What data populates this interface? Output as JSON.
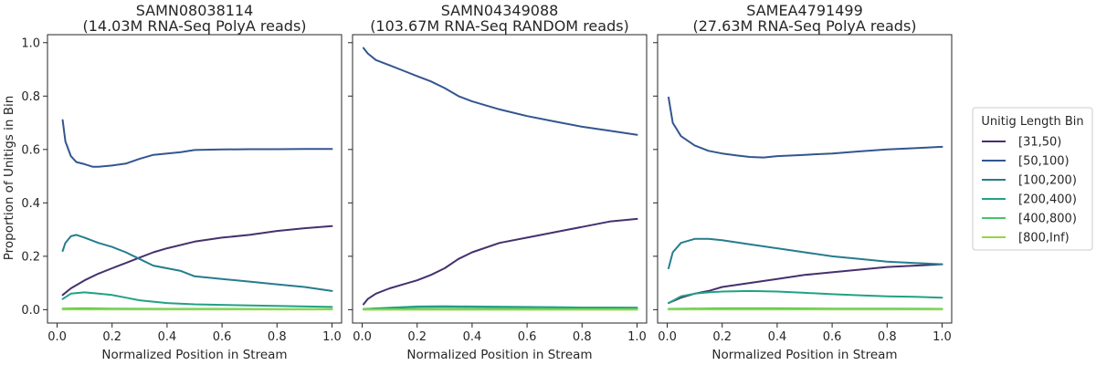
{
  "chart_data": {
    "type": "line",
    "ylabel": "Proportion of Unitigs in Bin",
    "xlabel": "Normalized Position in Stream",
    "xlim": [
      0,
      1
    ],
    "ylim": [
      0,
      1
    ],
    "xticks": [
      "0.0",
      "0.2",
      "0.4",
      "0.6",
      "0.8",
      "1.0"
    ],
    "yticks": [
      "0.0",
      "0.2",
      "0.4",
      "0.6",
      "0.8",
      "1.0"
    ],
    "legend": {
      "title": "Unitig Length Bin",
      "placement": "right",
      "entries": [
        {
          "name": "[31,50)",
          "color": "#45306e"
        },
        {
          "name": "[50,100)",
          "color": "#33568f"
        },
        {
          "name": "[100,200)",
          "color": "#267c8e"
        },
        {
          "name": "[200,400)",
          "color": "#22a184"
        },
        {
          "name": "[400,800)",
          "color": "#48c16d"
        },
        {
          "name": "[800,Inf)",
          "color": "#92d841"
        }
      ]
    },
    "panels": [
      {
        "title_line1": "SAMN08038114",
        "title_line2": "(14.03M RNA-Seq PolyA reads)",
        "series": [
          {
            "name": "[31,50)",
            "x": [
              0.02,
              0.05,
              0.1,
              0.15,
              0.2,
              0.25,
              0.3,
              0.35,
              0.4,
              0.5,
              0.6,
              0.7,
              0.8,
              0.9,
              1.0
            ],
            "y": [
              0.055,
              0.08,
              0.11,
              0.135,
              0.155,
              0.175,
              0.195,
              0.215,
              0.23,
              0.255,
              0.27,
              0.28,
              0.295,
              0.305,
              0.313
            ]
          },
          {
            "name": "[50,100)",
            "x": [
              0.02,
              0.03,
              0.05,
              0.07,
              0.1,
              0.13,
              0.15,
              0.2,
              0.25,
              0.3,
              0.35,
              0.4,
              0.45,
              0.5,
              0.6,
              0.7,
              0.8,
              0.9,
              1.0
            ],
            "y": [
              0.71,
              0.63,
              0.575,
              0.553,
              0.545,
              0.535,
              0.535,
              0.54,
              0.547,
              0.565,
              0.58,
              0.585,
              0.59,
              0.598,
              0.6,
              0.601,
              0.601,
              0.602,
              0.602
            ]
          },
          {
            "name": "[100,200)",
            "x": [
              0.02,
              0.03,
              0.05,
              0.07,
              0.1,
              0.15,
              0.2,
              0.25,
              0.3,
              0.35,
              0.4,
              0.45,
              0.5,
              0.6,
              0.7,
              0.8,
              0.9,
              1.0
            ],
            "y": [
              0.22,
              0.25,
              0.275,
              0.28,
              0.27,
              0.25,
              0.235,
              0.215,
              0.19,
              0.165,
              0.155,
              0.145,
              0.125,
              0.115,
              0.105,
              0.095,
              0.085,
              0.07
            ]
          },
          {
            "name": "[200,400)",
            "x": [
              0.02,
              0.05,
              0.1,
              0.15,
              0.2,
              0.25,
              0.3,
              0.35,
              0.4,
              0.5,
              0.6,
              0.8,
              1.0
            ],
            "y": [
              0.04,
              0.06,
              0.065,
              0.06,
              0.055,
              0.045,
              0.035,
              0.03,
              0.025,
              0.02,
              0.018,
              0.014,
              0.01
            ]
          },
          {
            "name": "[400,800)",
            "x": [
              0.02,
              0.1,
              0.2,
              0.4,
              0.6,
              0.8,
              1.0
            ],
            "y": [
              0.004,
              0.005,
              0.004,
              0.003,
              0.003,
              0.002,
              0.002
            ]
          },
          {
            "name": "[800,Inf)",
            "x": [
              0.02,
              0.2,
              0.4,
              0.6,
              0.8,
              1.0
            ],
            "y": [
              0.001,
              0.001,
              0.001,
              0.001,
              0.001,
              0.001
            ]
          }
        ]
      },
      {
        "title_line1": "SAMN04349088",
        "title_line2": "(103.67M RNA-Seq RANDOM reads)",
        "series": [
          {
            "name": "[31,50)",
            "x": [
              0.005,
              0.02,
              0.05,
              0.1,
              0.15,
              0.2,
              0.25,
              0.3,
              0.35,
              0.4,
              0.5,
              0.6,
              0.7,
              0.8,
              0.9,
              1.0
            ],
            "y": [
              0.02,
              0.04,
              0.06,
              0.08,
              0.095,
              0.11,
              0.13,
              0.155,
              0.19,
              0.215,
              0.25,
              0.27,
              0.29,
              0.31,
              0.33,
              0.34
            ]
          },
          {
            "name": "[50,100)",
            "x": [
              0.005,
              0.02,
              0.05,
              0.1,
              0.15,
              0.2,
              0.25,
              0.3,
              0.35,
              0.4,
              0.5,
              0.6,
              0.7,
              0.8,
              0.9,
              1.0
            ],
            "y": [
              0.98,
              0.96,
              0.935,
              0.915,
              0.895,
              0.875,
              0.855,
              0.83,
              0.8,
              0.78,
              0.75,
              0.725,
              0.705,
              0.685,
              0.67,
              0.655
            ]
          },
          {
            "name": "[100,200)",
            "x": [
              0.005,
              0.1,
              0.2,
              0.3,
              0.4,
              0.6,
              0.8,
              1.0
            ],
            "y": [
              0.002,
              0.006,
              0.01,
              0.011,
              0.01,
              0.009,
              0.008,
              0.007
            ]
          },
          {
            "name": "[200,400)",
            "x": [
              0.005,
              0.1,
              0.2,
              0.3,
              0.4,
              0.6,
              0.8,
              1.0
            ],
            "y": [
              0.002,
              0.007,
              0.012,
              0.013,
              0.012,
              0.01,
              0.008,
              0.007
            ]
          },
          {
            "name": "[400,800)",
            "x": [
              0.005,
              0.2,
              0.4,
              0.6,
              0.8,
              1.0
            ],
            "y": [
              0.001,
              0.002,
              0.002,
              0.002,
              0.002,
              0.002
            ]
          },
          {
            "name": "[800,Inf)",
            "x": [
              0.005,
              0.2,
              0.4,
              0.6,
              0.8,
              1.0
            ],
            "y": [
              0.0,
              0.0,
              0.0,
              0.0,
              0.0,
              0.0
            ]
          }
        ]
      },
      {
        "title_line1": "SAMEA4791499",
        "title_line2": "(27.63M RNA-Seq PolyA reads)",
        "series": [
          {
            "name": "[31,50)",
            "x": [
              0.005,
              0.05,
              0.1,
              0.15,
              0.2,
              0.3,
              0.4,
              0.5,
              0.6,
              0.7,
              0.8,
              0.9,
              1.0
            ],
            "y": [
              0.025,
              0.045,
              0.06,
              0.07,
              0.085,
              0.1,
              0.115,
              0.13,
              0.14,
              0.15,
              0.16,
              0.165,
              0.17
            ]
          },
          {
            "name": "[50,100)",
            "x": [
              0.005,
              0.02,
              0.05,
              0.1,
              0.15,
              0.2,
              0.25,
              0.3,
              0.35,
              0.4,
              0.5,
              0.6,
              0.7,
              0.8,
              0.9,
              1.0
            ],
            "y": [
              0.795,
              0.7,
              0.65,
              0.615,
              0.595,
              0.585,
              0.578,
              0.572,
              0.57,
              0.575,
              0.58,
              0.585,
              0.593,
              0.6,
              0.605,
              0.61
            ]
          },
          {
            "name": "[100,200)",
            "x": [
              0.005,
              0.02,
              0.05,
              0.1,
              0.15,
              0.2,
              0.3,
              0.4,
              0.5,
              0.6,
              0.7,
              0.8,
              0.9,
              1.0
            ],
            "y": [
              0.155,
              0.215,
              0.25,
              0.265,
              0.265,
              0.26,
              0.245,
              0.23,
              0.215,
              0.2,
              0.19,
              0.18,
              0.175,
              0.17
            ]
          },
          {
            "name": "[200,400)",
            "x": [
              0.005,
              0.05,
              0.1,
              0.15,
              0.2,
              0.3,
              0.4,
              0.5,
              0.6,
              0.7,
              0.8,
              0.9,
              1.0
            ],
            "y": [
              0.025,
              0.05,
              0.06,
              0.065,
              0.068,
              0.07,
              0.068,
              0.063,
              0.058,
              0.054,
              0.05,
              0.048,
              0.045
            ]
          },
          {
            "name": "[400,800)",
            "x": [
              0.005,
              0.2,
              0.4,
              0.6,
              0.8,
              1.0
            ],
            "y": [
              0.003,
              0.005,
              0.005,
              0.004,
              0.004,
              0.003
            ]
          },
          {
            "name": "[800,Inf)",
            "x": [
              0.005,
              0.2,
              0.4,
              0.6,
              0.8,
              1.0
            ],
            "y": [
              0.001,
              0.001,
              0.001,
              0.001,
              0.001,
              0.001
            ]
          }
        ]
      }
    ]
  }
}
